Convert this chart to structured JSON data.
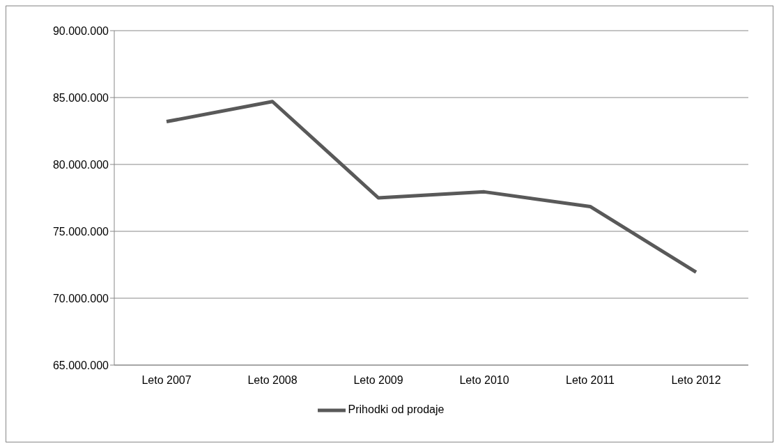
{
  "chart_data": {
    "type": "line",
    "categories": [
      "Leto 2007",
      "Leto 2008",
      "Leto 2009",
      "Leto 2010",
      "Leto 2011",
      "Leto 2012"
    ],
    "series": [
      {
        "name": "Prihodki od prodaje",
        "color": "#595959",
        "values": [
          83200000,
          84700000,
          77500000,
          77950000,
          76850000,
          71950000
        ]
      }
    ],
    "ylim": [
      65000000,
      90000000
    ],
    "yticks": [
      {
        "value": 65000000,
        "label": "65.000.000"
      },
      {
        "value": 70000000,
        "label": "70.000.000"
      },
      {
        "value": 75000000,
        "label": "75.000.000"
      },
      {
        "value": 80000000,
        "label": "80.000.000"
      },
      {
        "value": 85000000,
        "label": "85.000.000"
      },
      {
        "value": 90000000,
        "label": "90.000.000"
      }
    ],
    "grid": "y",
    "legend": "bottom",
    "marker": "none"
  }
}
